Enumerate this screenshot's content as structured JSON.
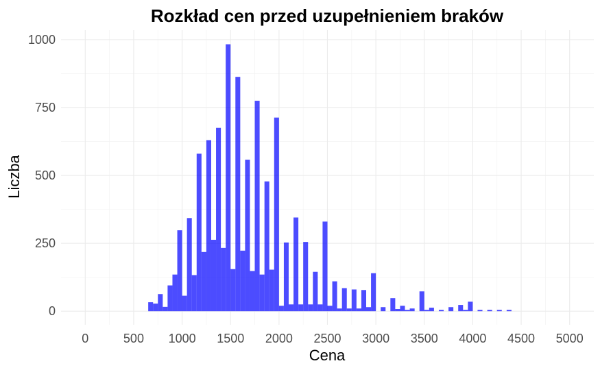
{
  "chart_data": {
    "type": "bar",
    "title": "Rozkład cen przed uzupełnieniem braków",
    "xlabel": "Cena",
    "ylabel": "Liczba",
    "xlim": [
      -250,
      5250
    ],
    "ylim": [
      -50,
      1035
    ],
    "bin_width": 50,
    "x_ticks": [
      0,
      500,
      1000,
      1500,
      2000,
      2500,
      3000,
      3500,
      4000,
      4500,
      5000
    ],
    "y_ticks": [
      0,
      250,
      500,
      750,
      1000
    ],
    "grid": true,
    "bar_color": "#0000ff",
    "bar_opacity": 0.7,
    "bins": [
      {
        "x": 675,
        "y": 33
      },
      {
        "x": 725,
        "y": 28
      },
      {
        "x": 775,
        "y": 63
      },
      {
        "x": 825,
        "y": 16
      },
      {
        "x": 875,
        "y": 95
      },
      {
        "x": 925,
        "y": 135
      },
      {
        "x": 975,
        "y": 298
      },
      {
        "x": 1025,
        "y": 57
      },
      {
        "x": 1075,
        "y": 343
      },
      {
        "x": 1125,
        "y": 133
      },
      {
        "x": 1175,
        "y": 580
      },
      {
        "x": 1225,
        "y": 218
      },
      {
        "x": 1275,
        "y": 630
      },
      {
        "x": 1325,
        "y": 263
      },
      {
        "x": 1375,
        "y": 675
      },
      {
        "x": 1425,
        "y": 233
      },
      {
        "x": 1475,
        "y": 983
      },
      {
        "x": 1525,
        "y": 155
      },
      {
        "x": 1575,
        "y": 863
      },
      {
        "x": 1625,
        "y": 223
      },
      {
        "x": 1675,
        "y": 558
      },
      {
        "x": 1725,
        "y": 148
      },
      {
        "x": 1775,
        "y": 775
      },
      {
        "x": 1825,
        "y": 135
      },
      {
        "x": 1875,
        "y": 478
      },
      {
        "x": 1925,
        "y": 153
      },
      {
        "x": 1975,
        "y": 713
      },
      {
        "x": 2025,
        "y": 20
      },
      {
        "x": 2075,
        "y": 253
      },
      {
        "x": 2125,
        "y": 25
      },
      {
        "x": 2175,
        "y": 345
      },
      {
        "x": 2225,
        "y": 25
      },
      {
        "x": 2275,
        "y": 255
      },
      {
        "x": 2325,
        "y": 25
      },
      {
        "x": 2375,
        "y": 145
      },
      {
        "x": 2425,
        "y": 25
      },
      {
        "x": 2475,
        "y": 330
      },
      {
        "x": 2525,
        "y": 20
      },
      {
        "x": 2575,
        "y": 110
      },
      {
        "x": 2625,
        "y": 10
      },
      {
        "x": 2675,
        "y": 85
      },
      {
        "x": 2725,
        "y": 10
      },
      {
        "x": 2775,
        "y": 80
      },
      {
        "x": 2825,
        "y": 10
      },
      {
        "x": 2875,
        "y": 78
      },
      {
        "x": 2925,
        "y": 15
      },
      {
        "x": 2975,
        "y": 140
      },
      {
        "x": 3075,
        "y": 15
      },
      {
        "x": 3175,
        "y": 48
      },
      {
        "x": 3225,
        "y": 8
      },
      {
        "x": 3275,
        "y": 20
      },
      {
        "x": 3325,
        "y": 5
      },
      {
        "x": 3375,
        "y": 10
      },
      {
        "x": 3475,
        "y": 73
      },
      {
        "x": 3525,
        "y": 5
      },
      {
        "x": 3575,
        "y": 13
      },
      {
        "x": 3675,
        "y": 5
      },
      {
        "x": 3775,
        "y": 15
      },
      {
        "x": 3875,
        "y": 23
      },
      {
        "x": 3925,
        "y": 5
      },
      {
        "x": 3975,
        "y": 35
      },
      {
        "x": 4075,
        "y": 5
      },
      {
        "x": 4175,
        "y": 5
      },
      {
        "x": 4275,
        "y": 5
      },
      {
        "x": 4375,
        "y": 5
      }
    ]
  }
}
